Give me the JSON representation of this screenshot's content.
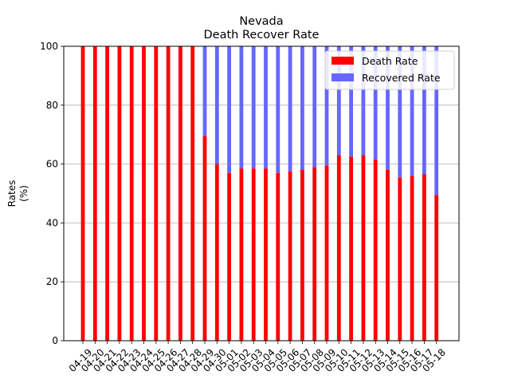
{
  "chart_data": {
    "type": "bar",
    "stacked": true,
    "title": "Nevada",
    "subtitle": "Death Recover Rate",
    "xlabel": "",
    "ylabel": "Rates\n(%)",
    "ylim": [
      0,
      100
    ],
    "yticks": [
      0,
      20,
      40,
      60,
      80,
      100
    ],
    "grid": "y",
    "legend_position": "top-right",
    "categories": [
      "04-19",
      "04-20",
      "04-21",
      "04-22",
      "04-23",
      "04-24",
      "04-25",
      "04-26",
      "04-27",
      "04-28",
      "04-29",
      "04-30",
      "05-01",
      "05-02",
      "05-03",
      "05-04",
      "05-05",
      "05-06",
      "05-07",
      "05-08",
      "05-09",
      "05-10",
      "05-11",
      "05-12",
      "05-13",
      "05-14",
      "05-15",
      "05-16",
      "05-17",
      "05-18"
    ],
    "series": [
      {
        "name": "Death Rate",
        "color": "#ff0000",
        "values": [
          100,
          100,
          100,
          100,
          100,
          100,
          100,
          100,
          100,
          100,
          69.5,
          60,
          57,
          58.5,
          58.5,
          58.5,
          57,
          57.5,
          58,
          59,
          59.5,
          63,
          62.5,
          63,
          61.5,
          58,
          55.5,
          56,
          56.5,
          49.5
        ]
      },
      {
        "name": "Recovered Rate",
        "color": "#6666ff",
        "values": [
          0,
          0,
          0,
          0,
          0,
          0,
          0,
          0,
          0,
          0,
          30.5,
          40,
          43,
          41.5,
          41.5,
          41.5,
          43,
          42.5,
          42,
          41,
          40.5,
          37,
          37.5,
          37,
          38.5,
          42,
          44.5,
          44,
          43.5,
          50.5
        ]
      }
    ]
  }
}
